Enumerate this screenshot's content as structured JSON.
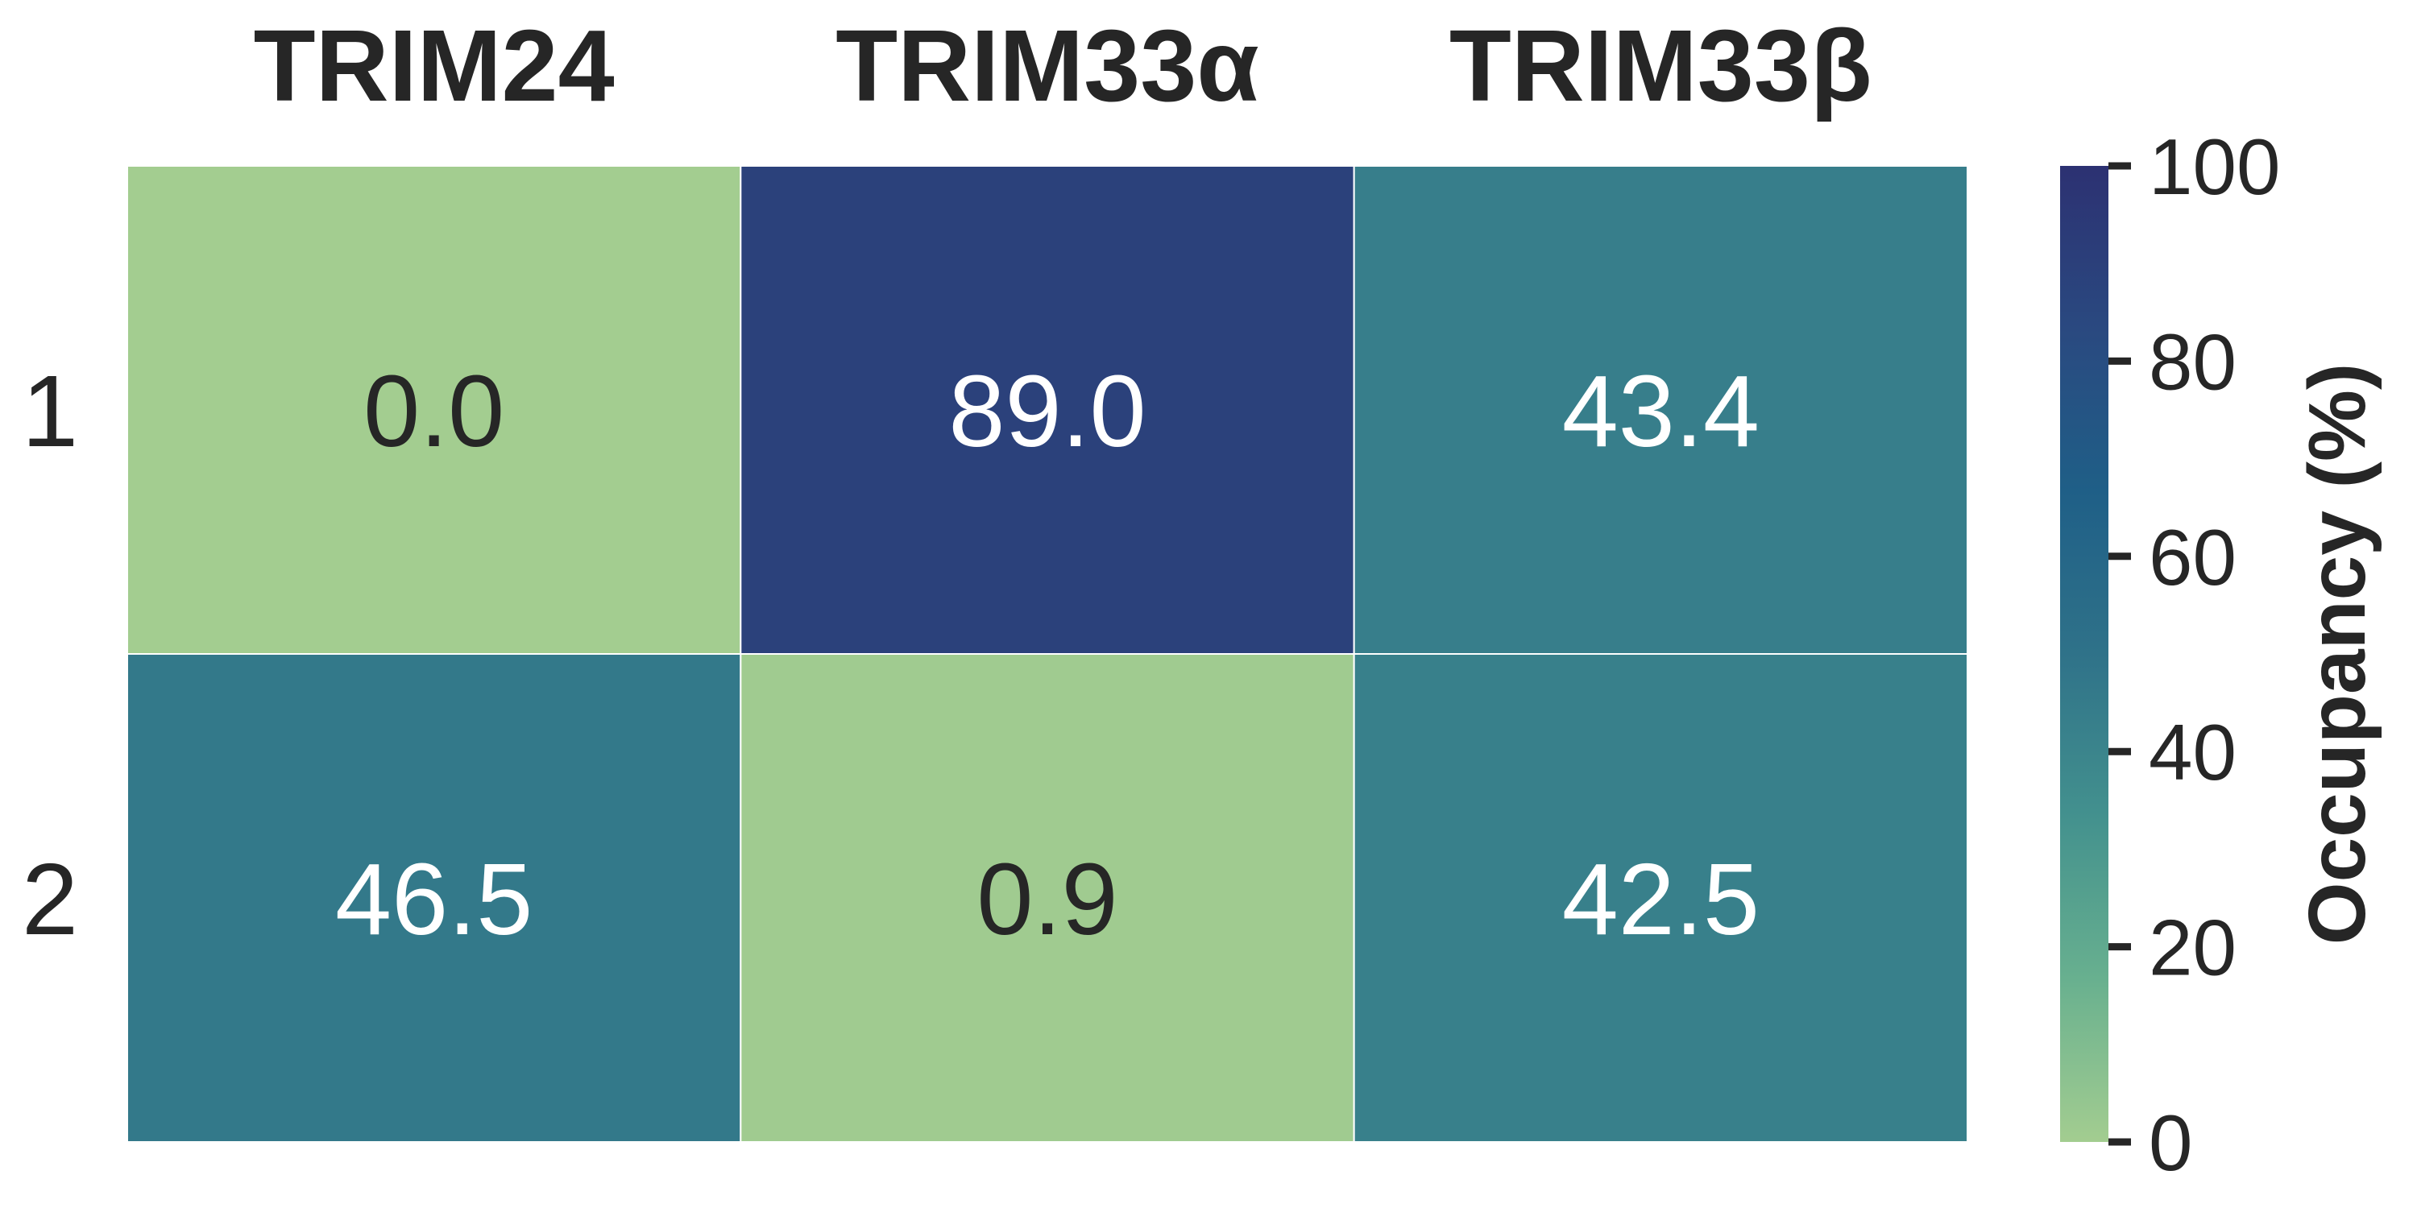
{
  "chart_data": {
    "type": "heatmap",
    "columns": [
      "TRIM24",
      "TRIM33α",
      "TRIM33β"
    ],
    "rows": [
      "1",
      "2"
    ],
    "values": [
      [
        0.0,
        89.0,
        43.4
      ],
      [
        46.5,
        0.9,
        42.5
      ]
    ],
    "value_labels": [
      [
        "0.0",
        "89.0",
        "43.4"
      ],
      [
        "46.5",
        "0.9",
        "42.5"
      ]
    ],
    "colorbar": {
      "label": "Occupancy (%)",
      "range": [
        0,
        100
      ],
      "ticks": [
        0,
        20,
        40,
        60,
        80,
        100
      ],
      "tick_labels": [
        "0",
        "20",
        "40",
        "60",
        "80",
        "100"
      ]
    },
    "colormap": {
      "name": "crest",
      "stops": [
        "#a3cd90",
        "#68b08f",
        "#43918e",
        "#2f7289",
        "#1f5f87",
        "#2a4980",
        "#2c3172"
      ]
    },
    "text_colors": {
      "light": "#ffffff",
      "dark": "#262626"
    }
  }
}
